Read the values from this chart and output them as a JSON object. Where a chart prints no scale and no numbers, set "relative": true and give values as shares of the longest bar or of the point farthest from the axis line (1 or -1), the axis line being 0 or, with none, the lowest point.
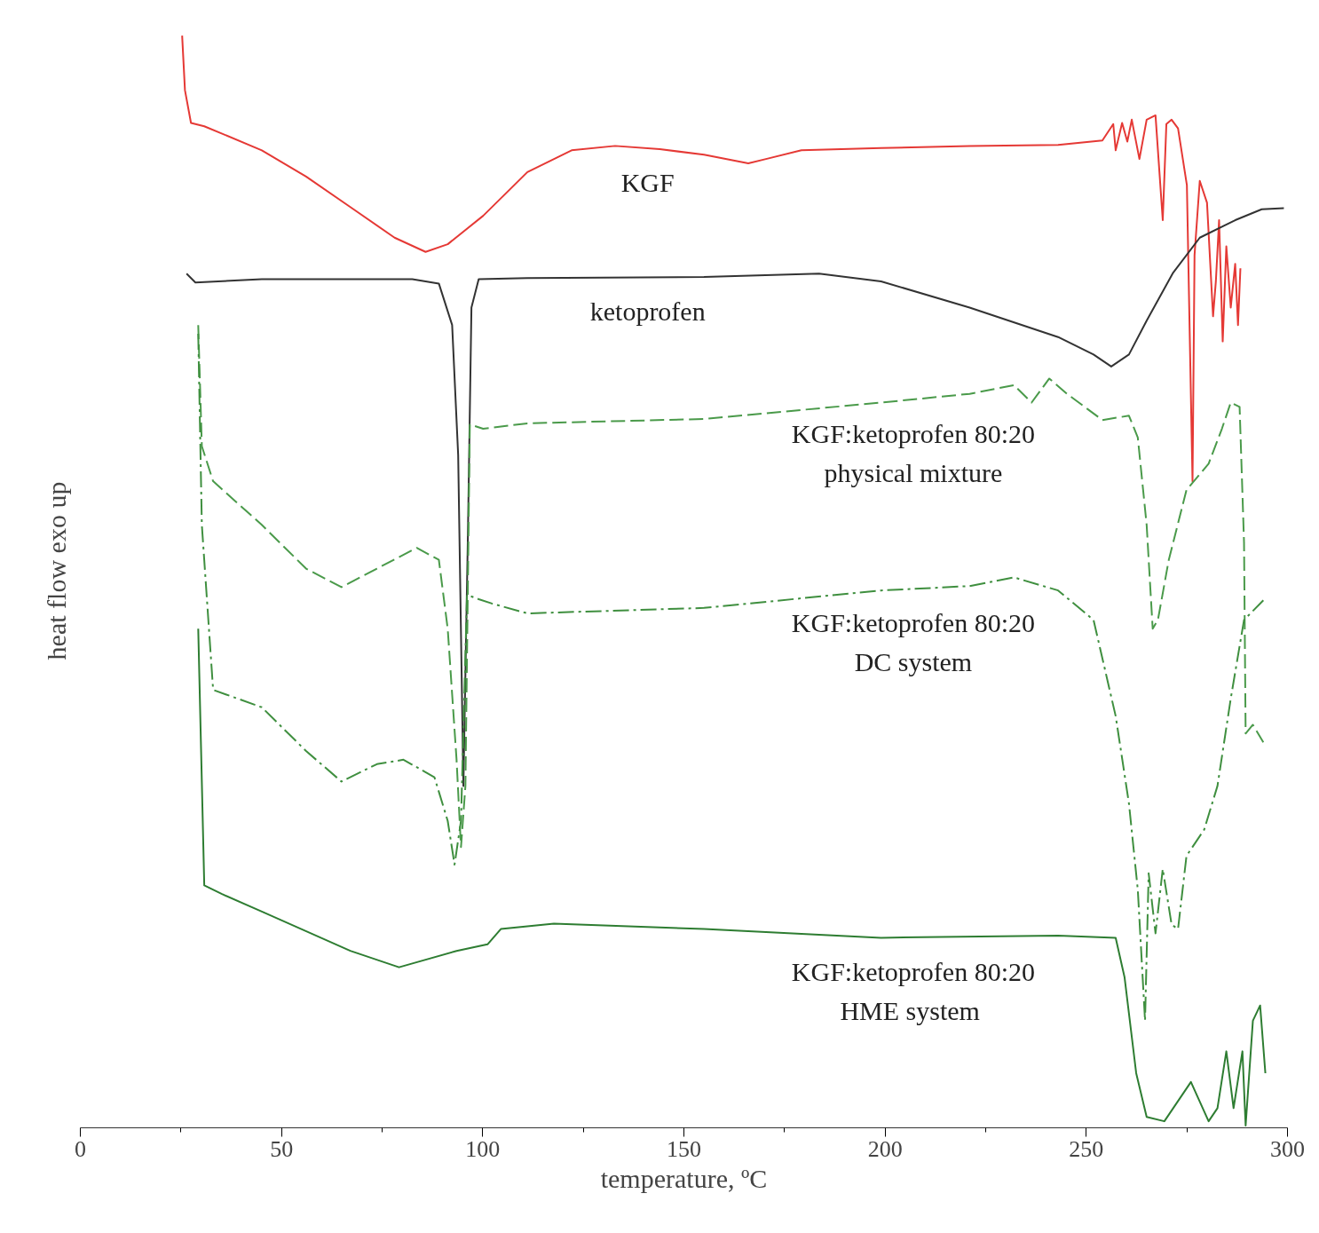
{
  "chart_data": {
    "type": "line",
    "relative": true,
    "xlabel": "temperature, ºC",
    "ylabel": "heat flow exo up",
    "xlim": [
      0,
      300
    ],
    "xticks": [
      0,
      50,
      100,
      150,
      200,
      250,
      300
    ],
    "grid": false,
    "tick_labels": "x",
    "series": [
      {
        "name": "KGF",
        "color": "#e53935",
        "line_style": "solid",
        "x": [
          25.3,
          26.0,
          27.5,
          30.8,
          45.1,
          56.1,
          67.1,
          78.1,
          85.8,
          91.3,
          100.1,
          111.1,
          122.1,
          132.9,
          144.0,
          155.0,
          166.0,
          170.4,
          179.2,
          199.0,
          221.0,
          243.0,
          254.0,
          256.7,
          257.3,
          258.9,
          260.2,
          261.3,
          263.2,
          265.0,
          267.2,
          269.0,
          269.9,
          271.2,
          272.8,
          275.0,
          276.4,
          276.9,
          278.2,
          280.0,
          281.5,
          282.2,
          283.0,
          283.9,
          284.8,
          285.9,
          287.0,
          287.7,
          288.3
        ],
        "values": [
          1.0,
          0.95,
          0.92,
          0.917,
          0.895,
          0.871,
          0.843,
          0.815,
          0.802,
          0.809,
          0.835,
          0.875,
          0.895,
          0.899,
          0.896,
          0.891,
          0.883,
          0.887,
          0.895,
          0.897,
          0.899,
          0.9,
          0.904,
          0.919,
          0.895,
          0.92,
          0.903,
          0.923,
          0.887,
          0.923,
          0.927,
          0.831,
          0.919,
          0.923,
          0.915,
          0.863,
          0.592,
          0.799,
          0.867,
          0.847,
          0.743,
          0.775,
          0.831,
          0.72,
          0.807,
          0.751,
          0.791,
          0.735,
          0.787
        ]
      },
      {
        "name": "ketoprofen",
        "color": "#333333",
        "line_style": "solid",
        "x": [
          26.4,
          28.6,
          45.1,
          82.5,
          89.1,
          92.4,
          93.9,
          95.2,
          96.3,
          97.2,
          99.0,
          111.1,
          155.0,
          183.6,
          199.0,
          221.0,
          243.0,
          251.8,
          256.2,
          260.6,
          265.0,
          271.6,
          278.2,
          287.0,
          293.6,
          299.1
        ],
        "values": [
          0.782,
          0.774,
          0.777,
          0.777,
          0.773,
          0.735,
          0.616,
          0.313,
          0.539,
          0.751,
          0.777,
          0.778,
          0.779,
          0.782,
          0.775,
          0.751,
          0.724,
          0.708,
          0.697,
          0.708,
          0.739,
          0.783,
          0.815,
          0.831,
          0.841,
          0.842
        ]
      },
      {
        "name": "KGF:ketoprofen 80:20\nphysical mixture",
        "color": "#4a9a4a",
        "line_style": "dashed",
        "x": [
          29.3,
          30.2,
          33.0,
          45.1,
          56.1,
          64.9,
          73.7,
          83.6,
          89.1,
          91.3,
          93.5,
          94.6,
          95.7,
          96.8,
          100.1,
          111.1,
          155.0,
          199.0,
          221.0,
          232.0,
          236.4,
          240.8,
          245.2,
          254.0,
          260.6,
          262.8,
          265.0,
          266.5,
          267.8,
          270.5,
          274.9,
          280.4,
          283.7,
          285.9,
          288.1,
          289.2,
          289.6,
          291.4,
          294.0
        ],
        "values": [
          0.735,
          0.624,
          0.592,
          0.552,
          0.512,
          0.495,
          0.512,
          0.531,
          0.52,
          0.457,
          0.337,
          0.257,
          0.313,
          0.644,
          0.64,
          0.645,
          0.649,
          0.664,
          0.672,
          0.68,
          0.664,
          0.686,
          0.672,
          0.648,
          0.652,
          0.632,
          0.552,
          0.457,
          0.465,
          0.52,
          0.584,
          0.608,
          0.64,
          0.664,
          0.66,
          0.536,
          0.361,
          0.369,
          0.353
        ]
      },
      {
        "name": "KGF:ketoprofen 80:20\nDC system",
        "color": "#3f8f3f",
        "line_style": "dashdot",
        "x": [
          29.3,
          30.2,
          33.0,
          45.1,
          56.1,
          64.9,
          73.7,
          80.3,
          88.0,
          91.3,
          93.0,
          94.6,
          96.1,
          99.0,
          102.3,
          111.1,
          155.0,
          199.0,
          221.0,
          232.0,
          243.0,
          251.8,
          257.3,
          260.6,
          262.8,
          264.6,
          265.5,
          267.2,
          269.0,
          271.2,
          272.8,
          274.9,
          279.3,
          282.6,
          285.9,
          289.2,
          294.0
        ],
        "values": [
          0.727,
          0.552,
          0.401,
          0.385,
          0.345,
          0.317,
          0.333,
          0.337,
          0.321,
          0.281,
          0.241,
          0.281,
          0.488,
          0.484,
          0.48,
          0.471,
          0.476,
          0.492,
          0.496,
          0.504,
          0.492,
          0.465,
          0.377,
          0.297,
          0.218,
          0.098,
          0.233,
          0.178,
          0.237,
          0.186,
          0.182,
          0.249,
          0.273,
          0.313,
          0.393,
          0.465,
          0.483
        ]
      },
      {
        "name": "KGF:ketoprofen 80:20\nHME  system",
        "color": "#2e7d32",
        "line_style": "solid",
        "x": [
          29.3,
          30.8,
          35.2,
          45.1,
          67.1,
          79.2,
          93.5,
          101.2,
          104.5,
          117.7,
          155.0,
          199.0,
          243.0,
          257.3,
          259.5,
          262.4,
          265.0,
          269.4,
          276.0,
          280.4,
          282.6,
          284.8,
          286.6,
          288.8,
          289.6,
          291.4,
          293.2,
          294.5
        ],
        "values": [
          0.457,
          0.222,
          0.214,
          0.198,
          0.162,
          0.147,
          0.162,
          0.168,
          0.182,
          0.187,
          0.182,
          0.174,
          0.176,
          0.174,
          0.138,
          0.05,
          0.01,
          0.006,
          0.042,
          0.006,
          0.018,
          0.07,
          0.018,
          0.07,
          0.002,
          0.098,
          0.112,
          0.05
        ]
      }
    ]
  }
}
